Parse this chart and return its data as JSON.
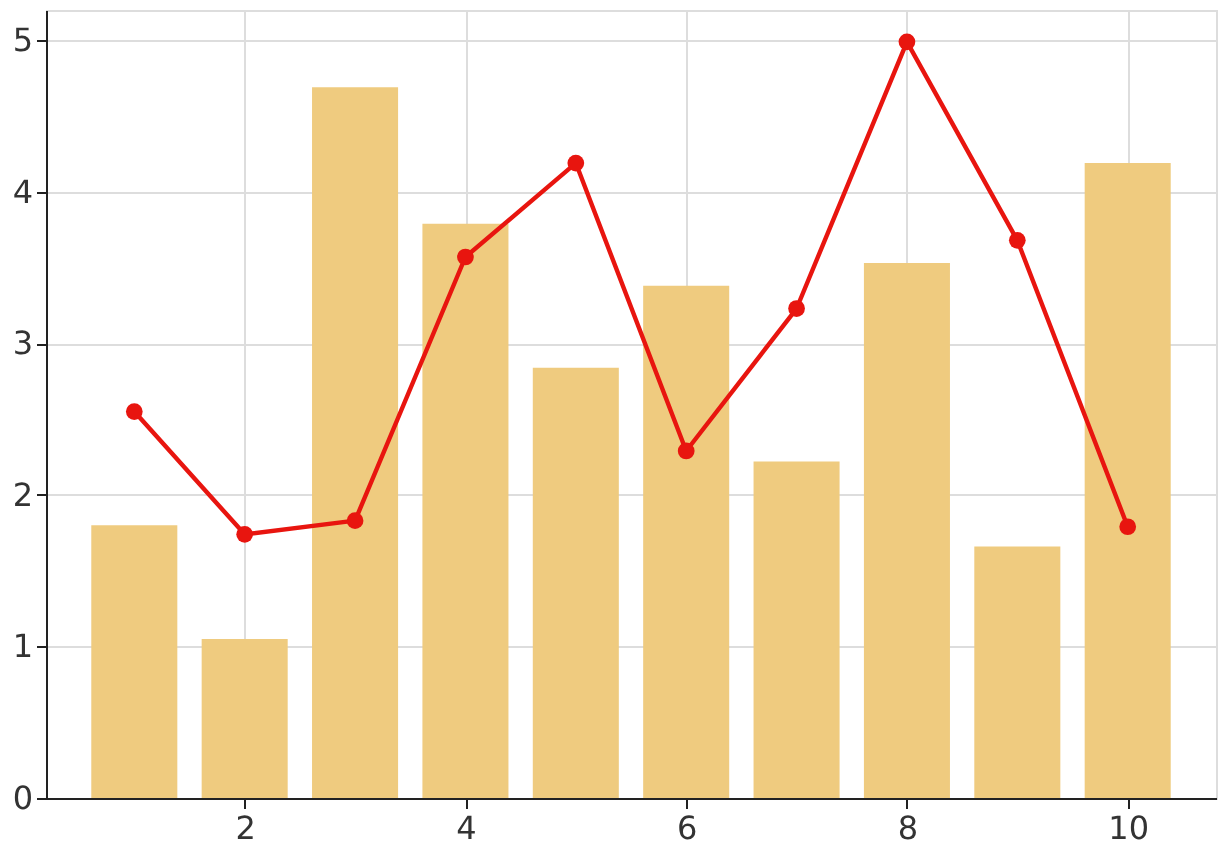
{
  "chart_data": {
    "type": "bar",
    "x": [
      1,
      2,
      3,
      4,
      5,
      6,
      7,
      8,
      9,
      10
    ],
    "series": [
      {
        "color": "#efcb7f",
        "values": [
          1.8,
          1.05,
          4.69,
          3.79,
          2.84,
          3.38,
          2.22,
          3.53,
          1.66,
          4.19
        ]
      },
      {
        "type": "line",
        "color": "#e8150f",
        "marker": "circle",
        "values": [
          2.55,
          1.74,
          1.83,
          3.57,
          4.19,
          2.29,
          3.23,
          4.99,
          3.68,
          1.79
        ]
      }
    ],
    "xlim": [
      0.2,
      10.8
    ],
    "xticks": [
      2,
      4,
      6,
      8,
      10
    ],
    "ylim": [
      0,
      5.2
    ],
    "yticks": [
      0,
      1,
      2,
      3,
      4,
      5
    ],
    "grid": true
  }
}
